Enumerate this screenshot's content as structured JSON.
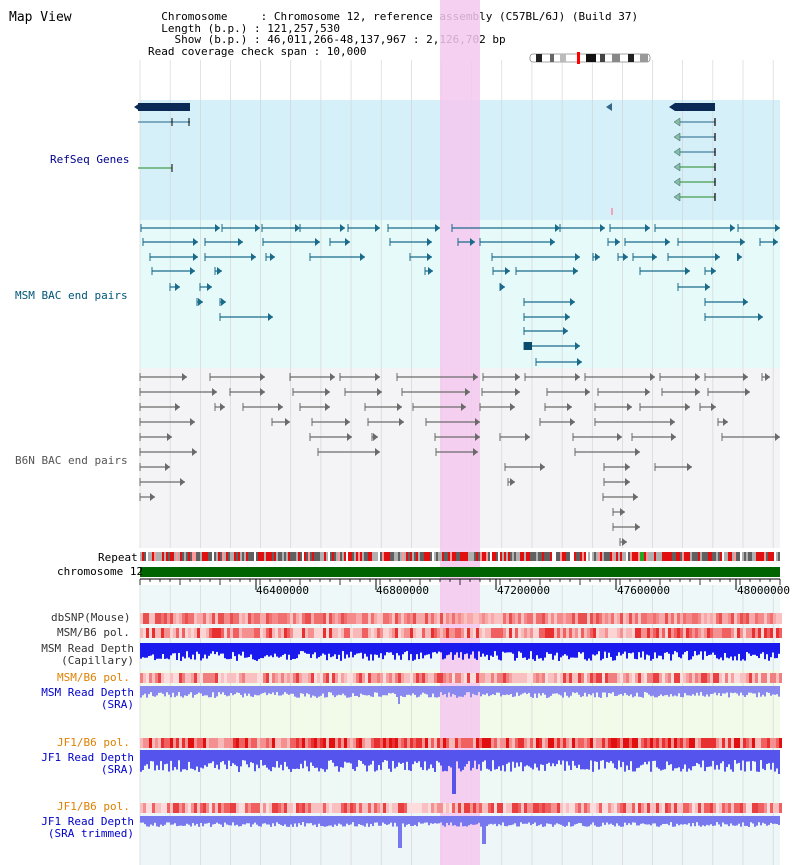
{
  "header": {
    "title": "Map View",
    "info_lines": [
      "  Chromosome     : Chromosome 12, reference assembly (C57BL/6J) (Build 37)",
      "  Length (b.p.) : 121,257,530",
      "    Show (b.p.) : 46,011,266-48,137,967 : 2,126,702 bp",
      "Read coverage check span : 10,000"
    ]
  },
  "tracks": {
    "refseq": "RefSeq Genes",
    "msm_bac": "MSM BAC end pairs",
    "b6n_bac": "B6N BAC end pairs",
    "repeat": "Repeat",
    "chromosome": "chromosome 12",
    "dbsnp": "dbSNP(Mouse)",
    "msm_b6_pol_1": "MSM/B6 pol.",
    "msm_read_depth_cap": "MSM Read Depth\n(Capillary)",
    "msm_b6_pol_2": "MSM/B6 pol.",
    "msm_read_depth_sra": "MSM Read Depth\n(SRA)",
    "jf1_b6_pol_1": "JF1/B6 pol.",
    "jf1_read_depth_sra": "JF1 Read Depth\n(SRA)",
    "jf1_b6_pol_2": "JF1/B6 pol.",
    "jf1_read_depth_trim": "JF1 Read Depth\n(SRA trimmed)"
  },
  "ruler": {
    "ticks": [
      "46400000",
      "46800000",
      "47200000",
      "47600000",
      "48000000"
    ]
  },
  "colors": {
    "refseq_label": "#00008b",
    "msm_label": "#005577",
    "b6n_label": "#555555",
    "msm_pol_label": "#e08000",
    "jf1_pol_label": "#e08000",
    "depth_label": "#0000cc",
    "highlight": "#f5c8ee",
    "chromosome_bar": "#006400"
  }
}
